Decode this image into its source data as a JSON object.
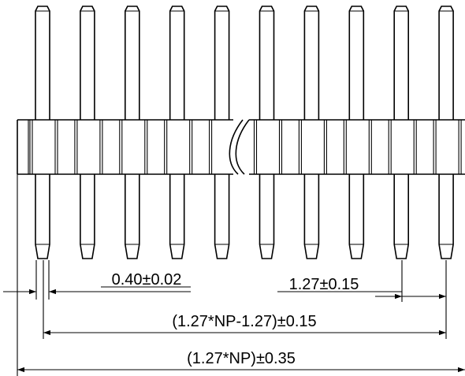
{
  "drawing": {
    "pin_count": 10,
    "dimensions": {
      "pin_thickness": "0.40±0.02",
      "pitch": "1.27±0.15",
      "pin_span": "(1.27*NP-1.27)±0.15",
      "overall_length": "(1.27*NP)±0.35"
    }
  }
}
